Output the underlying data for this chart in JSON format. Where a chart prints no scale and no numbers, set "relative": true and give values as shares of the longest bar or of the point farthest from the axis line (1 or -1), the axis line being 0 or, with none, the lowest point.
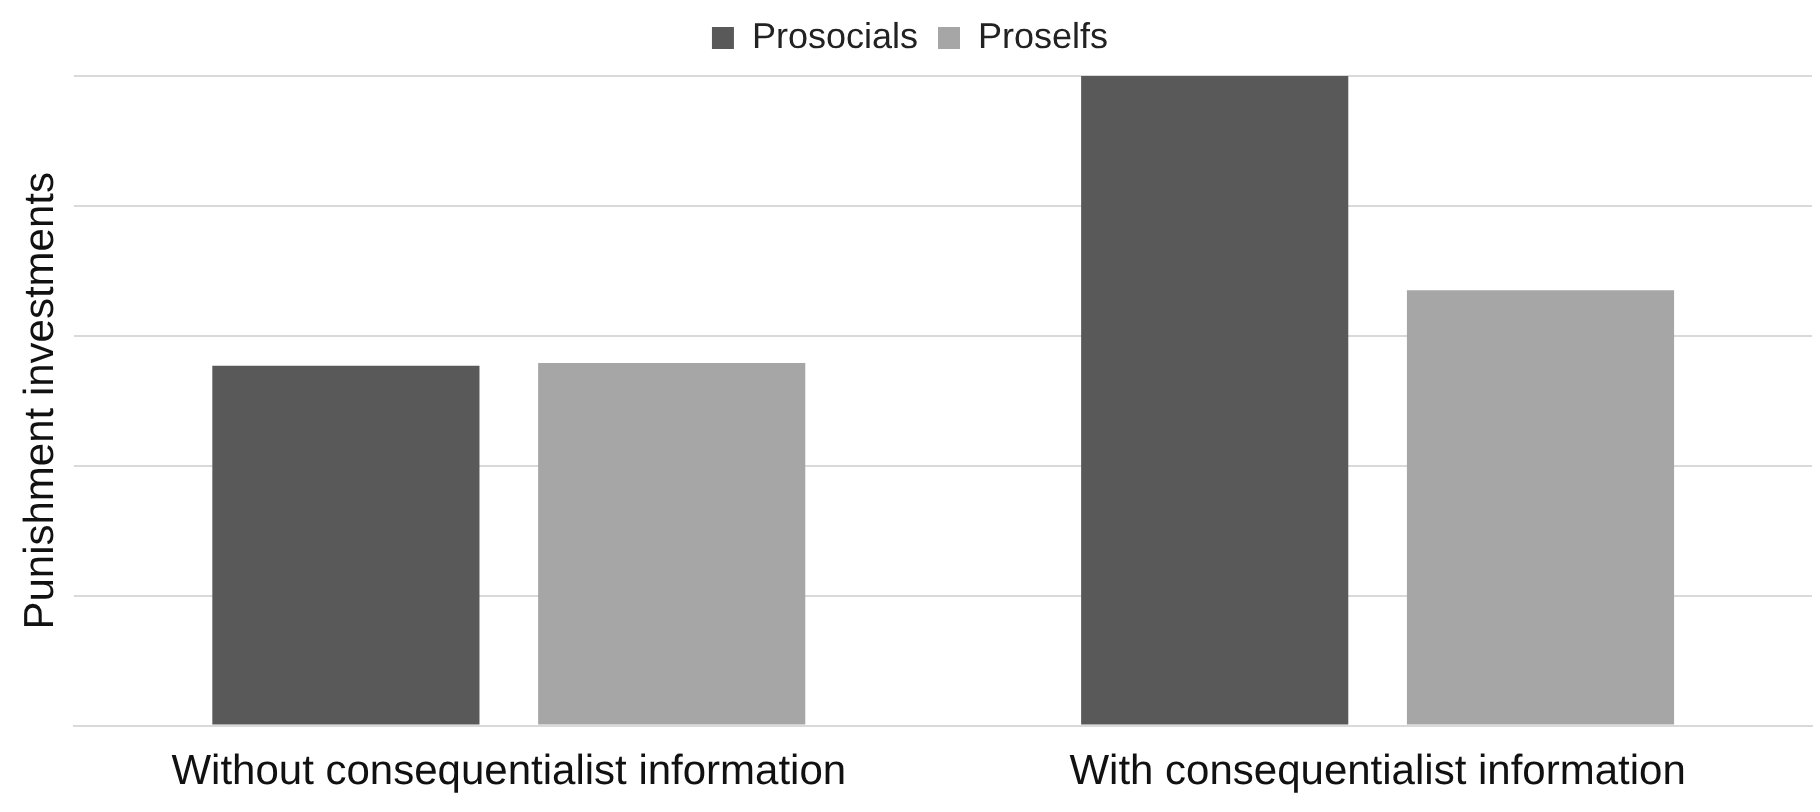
{
  "chart_data": {
    "type": "bar",
    "ylabel": "Punishment investments",
    "categories": [
      "Without consequentialist information",
      "With consequentialist information"
    ],
    "series": [
      {
        "name": "Prosocials",
        "color": "#595959",
        "values": [
          0.554,
          1
        ]
      },
      {
        "name": "Proselfs",
        "color": "#a6a6a6",
        "values": [
          0.558,
          0.67
        ]
      }
    ],
    "relative": true,
    "grid": "y",
    "legend": "top"
  }
}
